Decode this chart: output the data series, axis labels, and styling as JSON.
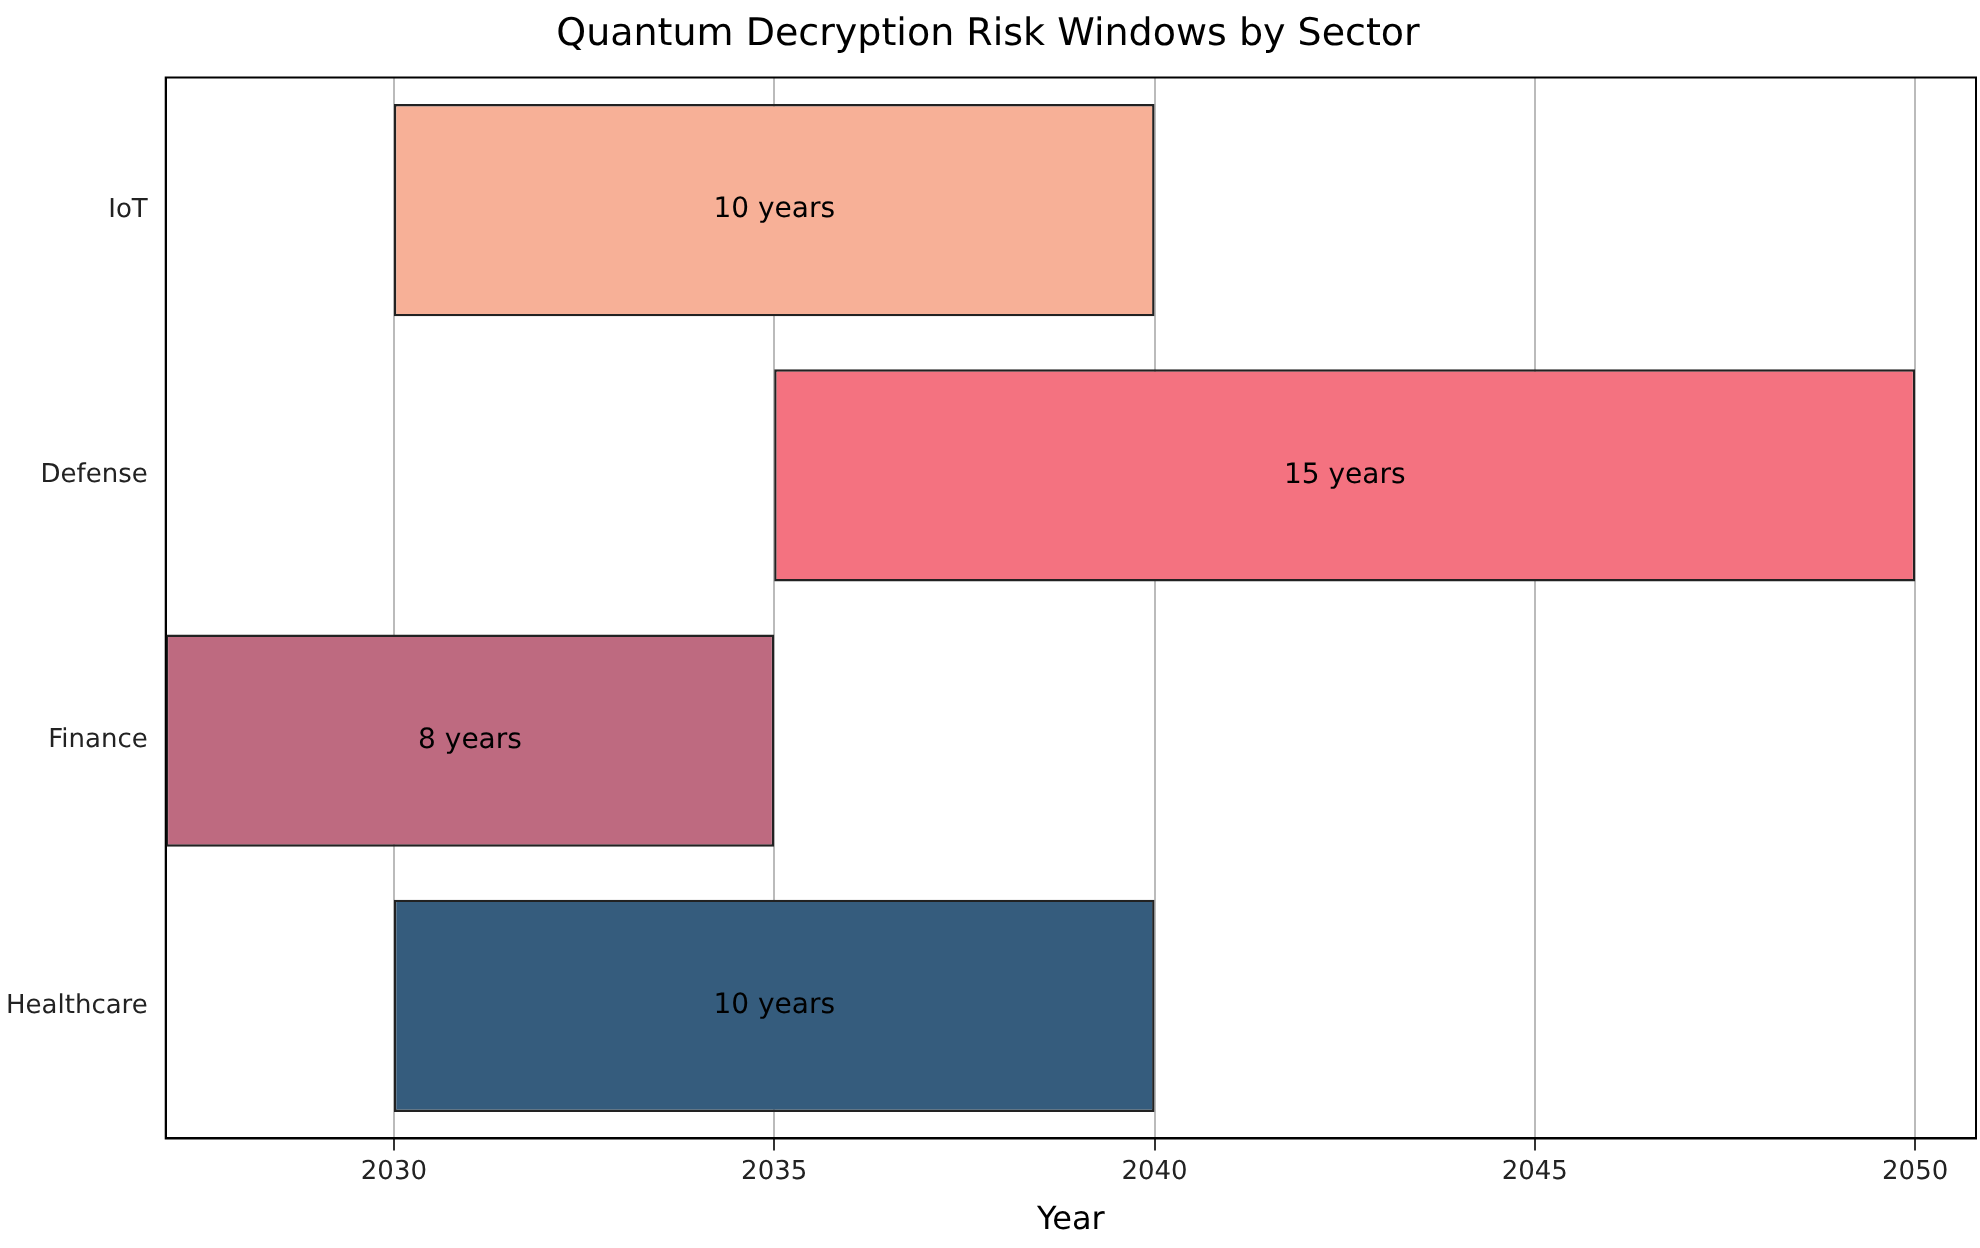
{
  "chart_data": {
    "type": "bar",
    "orientation": "horizontal",
    "title": "Quantum Decryption Risk Windows by Sector",
    "xlabel": "Year",
    "categories": [
      "IoT",
      "Defense",
      "Finance",
      "Healthcare"
    ],
    "base": [
      2030,
      2035,
      2027,
      2030
    ],
    "values": [
      10,
      15,
      8,
      10
    ],
    "colors": [
      "#f7b097",
      "#f47280",
      "#be6a80",
      "#355c7d"
    ],
    "value_labels": [
      "10 years",
      "15 years",
      "8 years",
      "10 years"
    ],
    "xlim": [
      2027,
      2050.8
    ],
    "xticks": [
      2030,
      2035,
      2040,
      2045,
      2050
    ],
    "grid": "x",
    "legend": false
  }
}
